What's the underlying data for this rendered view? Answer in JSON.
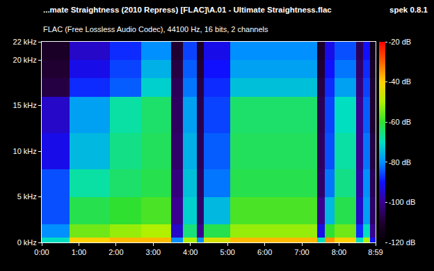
{
  "chart_data": {
    "type": "heatmap",
    "title": "...mate Straightness (2010 Repress) [FLAC]\\A.01 - Ultimate Straightness.flac",
    "subtitle": "FLAC (Free Lossless Audio Codec), 44100 Hz, 16 bits, 2 channels",
    "annotations": [
      "spek 0.8.1"
    ],
    "x": [
      0,
      45,
      110,
      161,
      209,
      228,
      250,
      262,
      304,
      445,
      457,
      473,
      507,
      519,
      530,
      539
    ],
    "y": [
      0,
      0.5,
      2,
      5,
      8,
      12,
      16,
      18,
      20,
      22
    ],
    "cells": [
      [
        -70,
        -40,
        -38,
        -38,
        -80,
        -50,
        -80,
        -45,
        -38,
        -70,
        -35,
        -40,
        -70,
        -50,
        -90
      ],
      [
        -80,
        -55,
        -52,
        -50,
        -95,
        -65,
        -100,
        -62,
        -52,
        -92,
        -60,
        -55,
        -88,
        -70,
        -100
      ],
      [
        -85,
        -62,
        -60,
        -58,
        -100,
        -72,
        -104,
        -75,
        -58,
        -100,
        -75,
        -62,
        -95,
        -78,
        -104
      ],
      [
        -85,
        -68,
        -64,
        -62,
        -102,
        -74,
        -105,
        -82,
        -62,
        -104,
        -82,
        -66,
        -98,
        -80,
        -106
      ],
      [
        -92,
        -75,
        -66,
        -63,
        -104,
        -76,
        -106,
        -84,
        -63,
        -105,
        -85,
        -68,
        -100,
        -82,
        -108
      ],
      [
        -95,
        -78,
        -68,
        -64,
        -105,
        -78,
        -107,
        -86,
        -64,
        -106,
        -86,
        -70,
        -100,
        -84,
        -110
      ],
      [
        -108,
        -88,
        -84,
        -72,
        -106,
        -82,
        -108,
        -88,
        -74,
        -108,
        -88,
        -78,
        -102,
        -86,
        -110
      ],
      [
        -110,
        -92,
        -86,
        -76,
        -108,
        -84,
        -110,
        -90,
        -78,
        -110,
        -90,
        -82,
        -104,
        -88,
        -112
      ],
      [
        -112,
        -95,
        -88,
        -80,
        -110,
        -86,
        -112,
        -92,
        -80,
        -112,
        -92,
        -85,
        -106,
        -90,
        -114
      ]
    ],
    "xlim": [
      0,
      539
    ],
    "xticks": [
      {
        "value": 0,
        "label": "0:00"
      },
      {
        "value": 60,
        "label": "1:00"
      },
      {
        "value": 120,
        "label": "2:00"
      },
      {
        "value": 180,
        "label": "3:00"
      },
      {
        "value": 240,
        "label": "4:00"
      },
      {
        "value": 300,
        "label": "5:00"
      },
      {
        "value": 360,
        "label": "6:00"
      },
      {
        "value": 420,
        "label": "7:00"
      },
      {
        "value": 480,
        "label": "8:00"
      },
      {
        "value": 539,
        "label": "8:59"
      }
    ],
    "ylim": [
      0,
      22
    ],
    "yticks": [
      {
        "value": 0,
        "label": "0 kHz"
      },
      {
        "value": 5,
        "label": "5 kHz"
      },
      {
        "value": 10,
        "label": "10 kHz"
      },
      {
        "value": 15,
        "label": "15 kHz"
      },
      {
        "value": 20,
        "label": "20 kHz"
      },
      {
        "value": 22,
        "label": "22 kHz"
      }
    ],
    "colorbar": {
      "range": [
        -120,
        -20
      ],
      "ticks": [
        {
          "value": -20,
          "label": "-20 dB"
        },
        {
          "value": -40,
          "label": "-40 dB"
        },
        {
          "value": -60,
          "label": "-60 dB"
        },
        {
          "value": -80,
          "label": "-80 dB"
        },
        {
          "value": -100,
          "label": "-100 dB"
        },
        {
          "value": -120,
          "label": "-120 dB"
        }
      ]
    }
  }
}
